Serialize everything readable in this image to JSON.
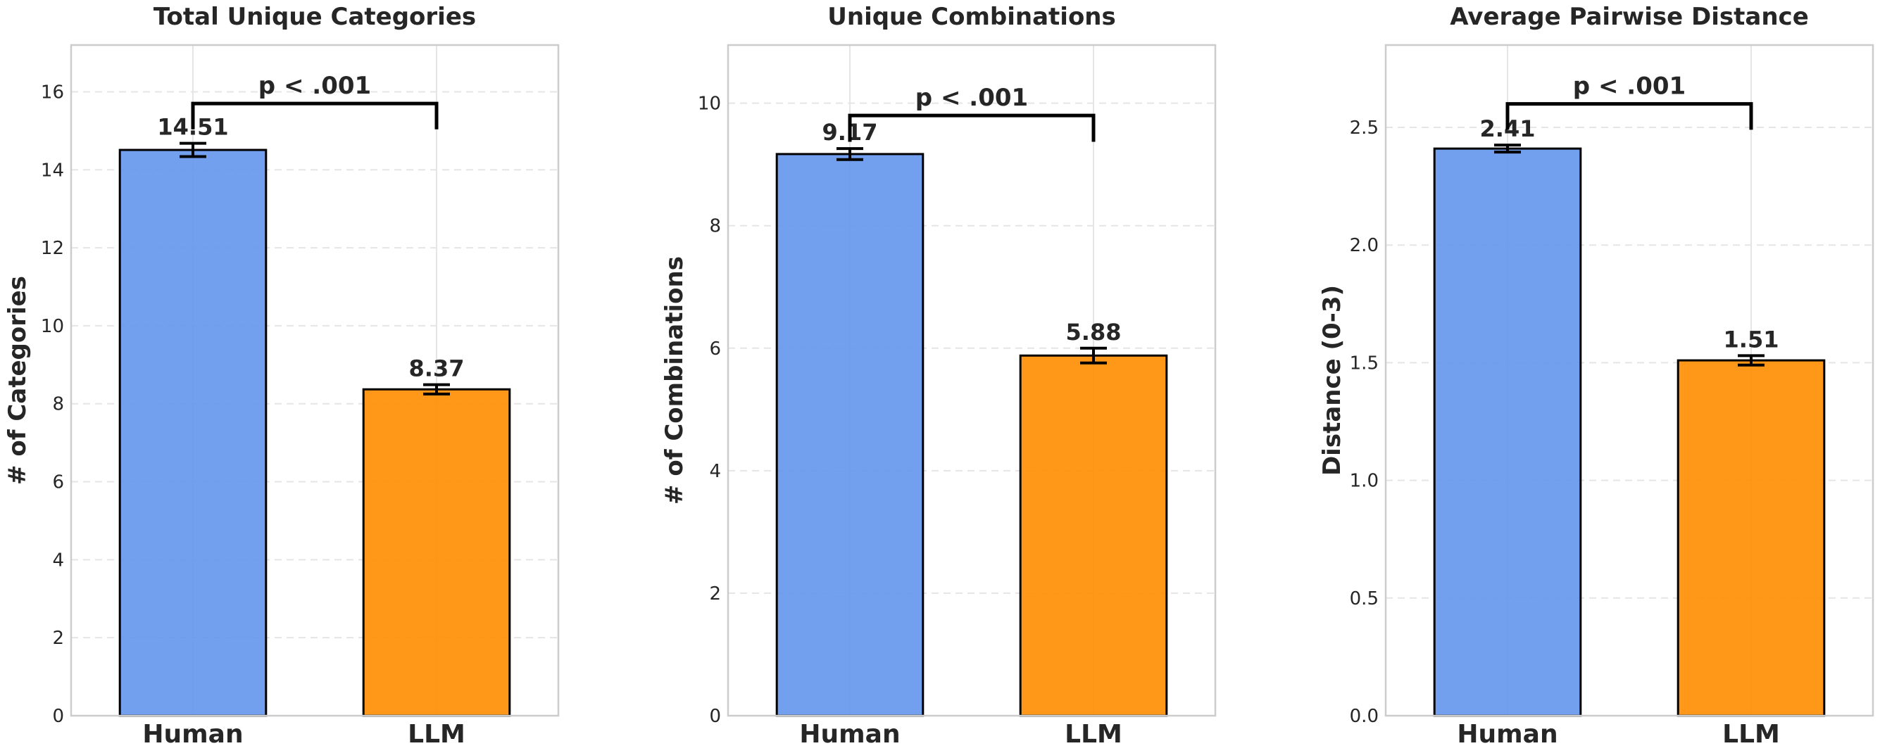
{
  "colors": {
    "human": "#6495ED",
    "llm": "#FF8C00",
    "bar_edge": "#000000",
    "grid": "#e5e5e5",
    "frame": "#cccccc",
    "text": "#262626"
  },
  "chart_data": [
    {
      "type": "bar",
      "title": "Total Unique Categories",
      "ylabel": "# of Categories",
      "categories": [
        "Human",
        "LLM"
      ],
      "values": [
        14.51,
        8.37
      ],
      "errors": [
        0.17,
        0.12
      ],
      "value_labels": [
        "14.51",
        "8.37"
      ],
      "ylim": [
        0,
        17.2
      ],
      "yticks": [
        0,
        2,
        4,
        6,
        8,
        10,
        12,
        14,
        16
      ],
      "ytick_labels": [
        "0",
        "2",
        "4",
        "6",
        "8",
        "10",
        "12",
        "14",
        "16"
      ],
      "significance": {
        "label": "p < .001",
        "y_top": 15.7,
        "y_drop": 15.4
      },
      "grid": true
    },
    {
      "type": "bar",
      "title": "Unique Combinations",
      "ylabel": "# of Combinations",
      "categories": [
        "Human",
        "LLM"
      ],
      "values": [
        9.17,
        5.88
      ],
      "errors": [
        0.09,
        0.12
      ],
      "value_labels": [
        "9.17",
        "5.88"
      ],
      "ylim": [
        0,
        10.95
      ],
      "yticks": [
        0,
        2,
        4,
        6,
        8,
        10
      ],
      "ytick_labels": [
        "0",
        "2",
        "4",
        "6",
        "8",
        "10"
      ],
      "significance": {
        "label": "p < .001",
        "y_top": 9.8,
        "y_drop": 9.6
      },
      "grid": true
    },
    {
      "type": "bar",
      "title": "Average Pairwise Distance",
      "ylabel": "Distance (0-3)",
      "categories": [
        "Human",
        "LLM"
      ],
      "values": [
        2.41,
        1.51
      ],
      "errors": [
        0.015,
        0.02
      ],
      "value_labels": [
        "2.41",
        "1.51"
      ],
      "ylim": [
        0,
        2.85
      ],
      "yticks": [
        0.0,
        0.5,
        1.0,
        1.5,
        2.0,
        2.5
      ],
      "ytick_labels": [
        "0.0",
        "0.5",
        "1.0",
        "1.5",
        "2.0",
        "2.5"
      ],
      "significance": {
        "label": "p < .001",
        "y_top": 2.6,
        "y_drop": 2.55
      },
      "grid": true
    }
  ]
}
